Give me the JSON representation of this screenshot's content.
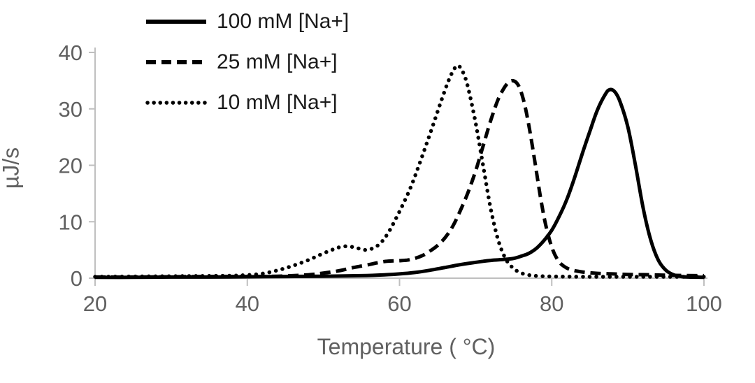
{
  "chart_data": {
    "type": "line",
    "title": "",
    "xlabel": "Temperature ( °C)",
    "ylabel": "µJ/s",
    "xlim": [
      20,
      100
    ],
    "ylim": [
      0,
      40
    ],
    "x_ticks": [
      20,
      40,
      60,
      80,
      100
    ],
    "y_ticks": [
      0,
      10,
      20,
      30,
      40
    ],
    "grid": false,
    "legend_position": "top-left",
    "series": [
      {
        "name": "100 mM [Na+]",
        "style": "solid",
        "color": "#000000",
        "peak": {
          "x": 87.6,
          "y": 33.4
        },
        "points": [
          [
            20,
            0.15
          ],
          [
            25,
            0.15
          ],
          [
            30,
            0.2
          ],
          [
            35,
            0.2
          ],
          [
            40,
            0.25
          ],
          [
            45,
            0.3
          ],
          [
            50,
            0.35
          ],
          [
            55,
            0.45
          ],
          [
            58,
            0.6
          ],
          [
            60,
            0.75
          ],
          [
            62,
            1.0
          ],
          [
            64,
            1.4
          ],
          [
            66,
            1.9
          ],
          [
            68,
            2.4
          ],
          [
            70,
            2.8
          ],
          [
            71,
            3.0
          ],
          [
            72,
            3.15
          ],
          [
            73,
            3.25
          ],
          [
            74,
            3.35
          ],
          [
            75,
            3.5
          ],
          [
            76,
            3.9
          ],
          [
            77,
            4.4
          ],
          [
            78,
            5.3
          ],
          [
            79,
            6.7
          ],
          [
            80,
            8.5
          ],
          [
            81,
            11.0
          ],
          [
            82,
            14.0
          ],
          [
            83,
            17.8
          ],
          [
            84,
            22.0
          ],
          [
            85,
            26.0
          ],
          [
            86,
            29.8
          ],
          [
            87,
            32.5
          ],
          [
            87.6,
            33.4
          ],
          [
            88.3,
            33.0
          ],
          [
            89,
            31.2
          ],
          [
            90,
            26.8
          ],
          [
            91,
            20.0
          ],
          [
            92,
            12.5
          ],
          [
            93,
            6.8
          ],
          [
            94,
            3.2
          ],
          [
            95,
            1.4
          ],
          [
            96,
            0.6
          ],
          [
            97,
            0.3
          ],
          [
            98,
            0.2
          ],
          [
            100,
            0.15
          ]
        ]
      },
      {
        "name": "25 mM [Na+]",
        "style": "dashed",
        "color": "#000000",
        "peak": {
          "x": 74.8,
          "y": 35.0
        },
        "points": [
          [
            20,
            0.2
          ],
          [
            25,
            0.2
          ],
          [
            30,
            0.25
          ],
          [
            35,
            0.3
          ],
          [
            40,
            0.3
          ],
          [
            44,
            0.35
          ],
          [
            48,
            0.6
          ],
          [
            50,
            0.9
          ],
          [
            52,
            1.3
          ],
          [
            54,
            1.9
          ],
          [
            56,
            2.4
          ],
          [
            57,
            2.7
          ],
          [
            58,
            2.95
          ],
          [
            59,
            3.05
          ],
          [
            60,
            3.1
          ],
          [
            61,
            3.2
          ],
          [
            62,
            3.5
          ],
          [
            63,
            4.0
          ],
          [
            64,
            4.8
          ],
          [
            65,
            5.8
          ],
          [
            66,
            7.2
          ],
          [
            67,
            9.2
          ],
          [
            68,
            12.0
          ],
          [
            69,
            15.2
          ],
          [
            70,
            19.0
          ],
          [
            71,
            23.5
          ],
          [
            72,
            28.0
          ],
          [
            73,
            31.8
          ],
          [
            74,
            34.2
          ],
          [
            74.8,
            35.0
          ],
          [
            75.6,
            34.2
          ],
          [
            76.3,
            31.5
          ],
          [
            77,
            27.0
          ],
          [
            77.8,
            20.5
          ],
          [
            78.5,
            14.5
          ],
          [
            79.2,
            9.5
          ],
          [
            80,
            5.5
          ],
          [
            80.8,
            3.2
          ],
          [
            81.6,
            2.1
          ],
          [
            82.5,
            1.5
          ],
          [
            84,
            1.1
          ],
          [
            86,
            0.85
          ],
          [
            88,
            0.75
          ],
          [
            90,
            0.65
          ],
          [
            93,
            0.6
          ],
          [
            96,
            0.5
          ],
          [
            100,
            0.45
          ]
        ]
      },
      {
        "name": "10 mM [Na+]",
        "style": "dotted",
        "color": "#000000",
        "peak": {
          "x": 67.8,
          "y": 37.6
        },
        "points": [
          [
            20,
            0.25
          ],
          [
            25,
            0.3
          ],
          [
            30,
            0.35
          ],
          [
            35,
            0.4
          ],
          [
            38,
            0.45
          ],
          [
            40,
            0.55
          ],
          [
            42,
            0.8
          ],
          [
            44,
            1.4
          ],
          [
            46,
            2.2
          ],
          [
            48,
            3.2
          ],
          [
            50,
            4.4
          ],
          [
            51.5,
            5.2
          ],
          [
            52.5,
            5.6
          ],
          [
            53.5,
            5.6
          ],
          [
            54.5,
            5.3
          ],
          [
            55.5,
            5.0
          ],
          [
            56.5,
            5.3
          ],
          [
            57.5,
            6.2
          ],
          [
            58.5,
            8.0
          ],
          [
            59.5,
            10.5
          ],
          [
            60.5,
            13.2
          ],
          [
            61.5,
            16.2
          ],
          [
            62.5,
            19.8
          ],
          [
            63.5,
            23.6
          ],
          [
            64.5,
            27.5
          ],
          [
            65.5,
            31.5
          ],
          [
            66.5,
            35.2
          ],
          [
            67.3,
            37.3
          ],
          [
            67.8,
            37.6
          ],
          [
            68.4,
            36.3
          ],
          [
            69,
            33.8
          ],
          [
            70,
            27.5
          ],
          [
            71,
            19.8
          ],
          [
            72,
            12.2
          ],
          [
            73,
            6.6
          ],
          [
            74,
            3.3
          ],
          [
            75,
            1.7
          ],
          [
            76,
            0.9
          ],
          [
            77,
            0.55
          ],
          [
            78,
            0.4
          ],
          [
            80,
            0.3
          ],
          [
            85,
            0.25
          ],
          [
            90,
            0.25
          ],
          [
            95,
            0.25
          ],
          [
            100,
            0.25
          ]
        ]
      }
    ]
  },
  "colors": {
    "curve": "#000000",
    "axis_line": "#bfbfbf",
    "axis_text": "#606060",
    "legend_text": "#1a1a1a",
    "background": "#ffffff"
  }
}
